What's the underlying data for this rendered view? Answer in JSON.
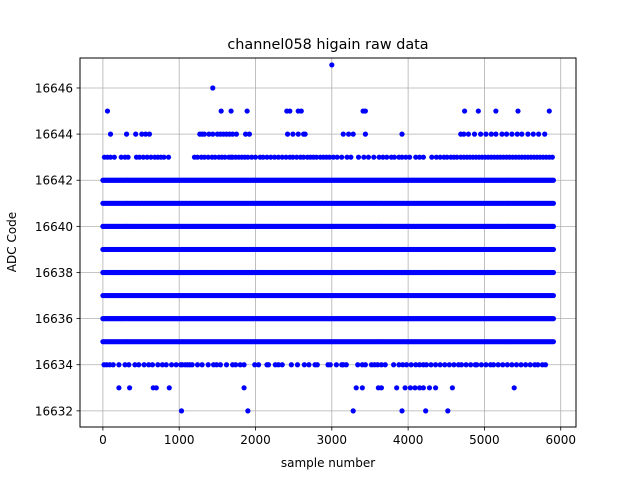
{
  "chart_data": {
    "type": "scatter",
    "title": "channel058 higain raw data",
    "xlabel": "sample number",
    "ylabel": "ADC Code",
    "xlim": [
      -300,
      6200
    ],
    "ylim": [
      16631.3,
      16647.3
    ],
    "x_ticks": [
      "0",
      "1000",
      "2000",
      "3000",
      "4000",
      "5000",
      "6000"
    ],
    "y_ticks": [
      "16632",
      "16634",
      "16636",
      "16638",
      "16640",
      "16642",
      "16644",
      "16646"
    ],
    "grid": true,
    "marker_color": "#0000ff",
    "x_range": [
      0,
      5920
    ],
    "dense_levels": [
      16635,
      16636,
      16637,
      16638,
      16639,
      16640,
      16641,
      16642
    ],
    "sparse_levels": [
      {
        "y": 16634,
        "x": [
          15,
          50,
          90,
          135,
          210,
          290,
          340,
          420,
          470,
          540,
          600,
          650,
          720,
          780,
          830,
          900,
          960,
          1020,
          1040,
          1080,
          1110,
          1140,
          1170,
          1240,
          1300,
          1380,
          1450,
          1490,
          1540,
          1620,
          1700,
          1740,
          1800,
          1850,
          1990,
          2040,
          2150,
          2170,
          2260,
          2300,
          2350,
          2470,
          2550,
          2640,
          2700,
          2780,
          2810,
          2950,
          2980,
          3060,
          3130,
          3150,
          3190,
          3340,
          3400,
          3440,
          3520,
          3560,
          3600,
          3650,
          3700,
          3810,
          3880,
          3930,
          3980,
          4040,
          4100,
          4150,
          4200,
          4240,
          4300,
          4360,
          4420,
          4480,
          4540,
          4600,
          4660,
          4700,
          4760,
          4820,
          4880,
          4900,
          4960,
          5020,
          5080,
          5120,
          5180,
          5240,
          5300,
          5360,
          5420,
          5480,
          5540,
          5600,
          5660,
          5700,
          5760,
          5800
        ]
      },
      {
        "y": 16633,
        "x": [
          210,
          350,
          660,
          700,
          870,
          1850,
          3320,
          3400,
          3610,
          3650,
          3850,
          3960,
          4030,
          4090,
          4150,
          4200,
          4280,
          4360,
          4580,
          5390
        ]
      },
      {
        "y": 16632,
        "x": [
          1030,
          1900,
          3280,
          3920,
          4230,
          4520
        ]
      },
      {
        "y": 16643,
        "x": [
          20,
          60,
          100,
          150,
          240,
          290,
          330,
          440,
          480,
          530,
          580,
          630,
          680,
          720,
          760,
          800,
          860,
          1200,
          1240,
          1290,
          1330,
          1380,
          1430,
          1470,
          1520,
          1560,
          1600,
          1650,
          1680,
          1700,
          1740,
          1780,
          1820,
          1860,
          1900,
          1950,
          2000,
          2060,
          2100,
          2150,
          2200,
          2250,
          2300,
          2350,
          2400,
          2450,
          2490,
          2540,
          2590,
          2630,
          2680,
          2720,
          2760,
          2800,
          2850,
          2890,
          2930,
          2970,
          3020,
          3070,
          3130,
          3200,
          3250,
          3350,
          3420,
          3480,
          3550,
          3620,
          3670,
          3720,
          3780,
          3820,
          3880,
          3920,
          3970,
          4020,
          4100,
          4150,
          4200,
          4310,
          4370,
          4420,
          4470,
          4510,
          4560,
          4600,
          4640,
          4690,
          4730,
          4770,
          4810,
          4850,
          4890,
          4930,
          4970,
          5010,
          5050,
          5090,
          5130,
          5170,
          5210,
          5250,
          5290,
          5330,
          5370,
          5410,
          5450,
          5490,
          5530,
          5570,
          5610,
          5650,
          5690,
          5730,
          5770,
          5810,
          5850,
          5890
        ]
      },
      {
        "y": 16644,
        "x": [
          100,
          310,
          430,
          510,
          560,
          610,
          1270,
          1300,
          1330,
          1390,
          1440,
          1500,
          1540,
          1580,
          1620,
          1660,
          1700,
          1750,
          1870,
          1920,
          2420,
          2490,
          2560,
          2630,
          2650,
          3150,
          3220,
          3280,
          3440,
          3920,
          4690,
          4730,
          4790,
          4870,
          4950,
          5020,
          5090,
          5150,
          5230,
          5290,
          5360,
          5430,
          5490,
          5570,
          5640,
          5710,
          5790
        ]
      },
      {
        "y": 16645,
        "x": [
          60,
          1550,
          1680,
          1890,
          2410,
          2450,
          2560,
          2600,
          3410,
          3440,
          4740,
          4920,
          5150,
          5440,
          5850
        ]
      },
      {
        "y": 16646,
        "x": [
          1440
        ]
      },
      {
        "y": 16647,
        "x": [
          3000
        ]
      }
    ]
  }
}
